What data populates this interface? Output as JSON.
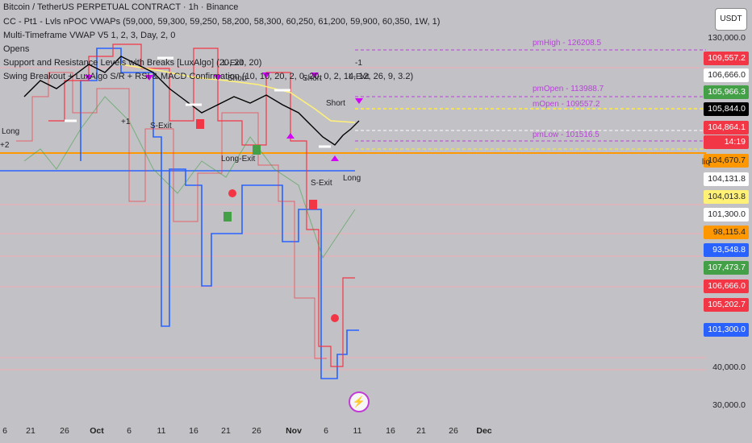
{
  "chart": {
    "symbol": "Bitcoin / TetherUS PERPETUAL CONTRACT · 1h · Binance",
    "indicators": [
      "CC - Pt1 - Lvls nPOC VWAPs (59,000, 59,300, 59,250, 58,200, 58,300, 60,250, 61,200, 59,900, 60,350, 1W, 1)",
      "Multi-Timeframe VWAP V5 1, 2, 3, Day, 2, 0",
      "Opens",
      "Support and Resistance Levels with Breaks [LuxAlgo] (20, 20, 20)",
      "Swing Breakout + LuxAlgo S/R + RSI & MACD Confirmation (10, 10, 20, 2, 0, 20, 0, 2, 14, 12, 26, 9, 3.2)"
    ],
    "currency": "USDT"
  },
  "price_axis": {
    "tags": [
      {
        "value": "109,557.2",
        "bg": "#f23645",
        "fg": "#ffffff"
      },
      {
        "value": "106,666.0",
        "bg": "#ffffff",
        "fg": "#1f1f23"
      },
      {
        "value": "105,966.3",
        "bg": "#43a047",
        "fg": "#ffffff"
      },
      {
        "value": "105,844.0",
        "bg": "#000000",
        "fg": "#ffffff"
      },
      {
        "value": "104,864.1",
        "bg": "#f23645",
        "fg": "#ffffff"
      },
      {
        "value": "14:19",
        "bg": "#f23645",
        "fg": "#ffffff"
      },
      {
        "value": "104,670.7",
        "bg": "#ff9800",
        "fg": "#1f1f23"
      },
      {
        "value": "104,131.8",
        "bg": "#ffffff",
        "fg": "#1f1f23"
      },
      {
        "value": "104,013.8",
        "bg": "#fff176",
        "fg": "#1f1f23"
      },
      {
        "value": "101,300.0",
        "bg": "#ffffff",
        "fg": "#1f1f23"
      },
      {
        "value": "98,115.4",
        "bg": "#ff9800",
        "fg": "#1f1f23"
      },
      {
        "value": "93,548.8",
        "bg": "#2962ff",
        "fg": "#ffffff"
      },
      {
        "value": "107,473.7",
        "bg": "#43a047",
        "fg": "#ffffff"
      },
      {
        "value": "106,666.0",
        "bg": "#f23645",
        "fg": "#ffffff"
      },
      {
        "value": "105,202.7",
        "bg": "#f23645",
        "fg": "#ffffff"
      },
      {
        "value": "101,300.0",
        "bg": "#2962ff",
        "fg": "#ffffff"
      }
    ],
    "plain": [
      "130,000.0",
      "40,000.0",
      "30,000.0"
    ],
    "liq": "liq"
  },
  "time_axis": [
    "6",
    "21",
    "26",
    "Oct",
    "6",
    "11",
    "16",
    "21",
    "26",
    "Nov",
    "6",
    "11",
    "16",
    "21",
    "26",
    "Dec"
  ],
  "levels": [
    {
      "text": "pmHigh - 126208.5",
      "color": "#b543d6"
    },
    {
      "text": "pmOpen - 113988.7",
      "color": "#b543d6"
    },
    {
      "text": "mOpen - 109557.2",
      "color": "#b543d6"
    },
    {
      "text": "pmLow - 101516.5",
      "color": "#b543d6"
    }
  ],
  "signals": [
    "Long",
    "Short",
    "S-Exit",
    "L-Exit",
    "Long-Exit",
    "Short",
    "-1",
    "+1",
    "+2",
    "Long",
    "S-Exit",
    "L-Exit",
    "Short"
  ]
}
